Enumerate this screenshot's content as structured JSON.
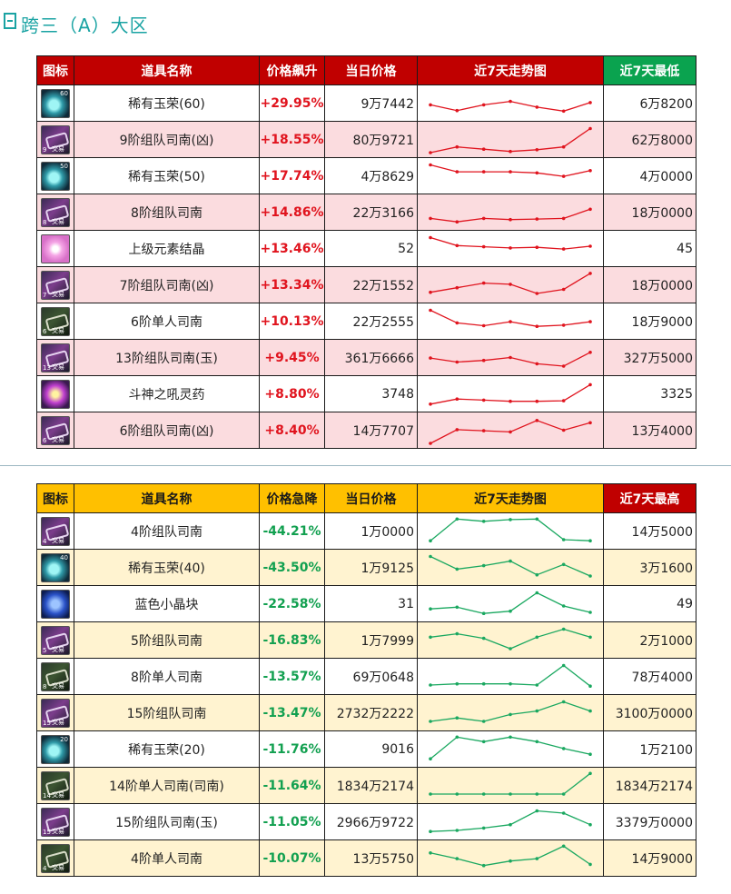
{
  "page": {
    "title": "跨三（A）大区"
  },
  "icons": {
    "header": "bookmark-icon",
    "gem": "gem-icon",
    "ticket": "ticket-icon",
    "crystal": "crystal-icon",
    "potion": "potion-icon",
    "blue_block": "blue-block-icon"
  },
  "colors": {
    "rise_header": "#c00000",
    "rise_ext_header": "#0aa34f",
    "rise_text": "#e0141e",
    "rise_row_alt": "#fbdcdf",
    "drop_header": "#ffc000",
    "drop_ext_header": "#c00000",
    "drop_text": "#12a050",
    "drop_row_alt": "#fff3d0",
    "rise_line": "#e0141e",
    "drop_line": "#1aa860"
  },
  "rise_table": {
    "headers": {
      "icon": "图标",
      "name": "道具名称",
      "pct": "价格飙升",
      "price": "当日价格",
      "trend": "近7天走势图",
      "ext": "近7天最低"
    },
    "rows": [
      {
        "icon": "gem",
        "icon_label": "60",
        "name": "稀有玉荣(60)",
        "pct": "+29.95%",
        "price": "9万7442",
        "ext": "6万8200",
        "trend": [
          2,
          1,
          2,
          2.6,
          1.6,
          0.9,
          2.4
        ]
      },
      {
        "icon": "ticket",
        "icon_label": "9",
        "icon_sub": "交易",
        "name": "9阶组队司南(凶)",
        "pct": "+18.55%",
        "price": "80万9721",
        "ext": "62万8000",
        "trend": [
          0,
          1,
          0.6,
          0.2,
          0.5,
          1,
          4.2
        ]
      },
      {
        "icon": "gem",
        "icon_label": "50",
        "name": "稀有玉荣(50)",
        "pct": "+17.74%",
        "price": "4万8629",
        "ext": "4万0000",
        "trend": [
          4.2,
          3,
          3,
          3,
          2.8,
          2.2,
          3.2
        ]
      },
      {
        "icon": "ticket",
        "icon_label": "8",
        "icon_sub": "交易",
        "name": "8阶组队司南",
        "pct": "+14.86%",
        "price": "22万3166",
        "ext": "18万0000",
        "trend": [
          1.2,
          0.6,
          1.2,
          1,
          1.1,
          1.2,
          2.8
        ]
      },
      {
        "icon": "crystal",
        "name": "上级元素结晶",
        "pct": "+13.46%",
        "price": "52",
        "ext": "45",
        "trend": [
          4.2,
          2.8,
          2.6,
          2.4,
          2.5,
          2.2,
          2.7
        ]
      },
      {
        "icon": "ticket",
        "icon_label": "7",
        "icon_sub": "交易",
        "name": "7阶组队司南(凶)",
        "pct": "+13.34%",
        "price": "22万1552",
        "ext": "18万0000",
        "trend": [
          1,
          1.8,
          2.6,
          2.4,
          0.8,
          1.5,
          4.3
        ]
      },
      {
        "icon": "ticket_dark",
        "icon_label": "6",
        "icon_sub": "交易",
        "name": "6阶单人司南",
        "pct": "+10.13%",
        "price": "22万2555",
        "ext": "18万9000",
        "trend": [
          4.2,
          2,
          1.5,
          2.2,
          1.4,
          1.6,
          2.2
        ]
      },
      {
        "icon": "ticket",
        "icon_label": "13",
        "icon_sub": "交易",
        "name": "13阶组队司南(玉)",
        "pct": "+9.45%",
        "price": "361万6666",
        "ext": "327万5000",
        "trend": [
          2.2,
          1.5,
          1.8,
          2.3,
          1.2,
          0.8,
          3.2
        ]
      },
      {
        "icon": "potion",
        "name": "斗神之吼灵药",
        "pct": "+8.80%",
        "price": "3748",
        "ext": "3325",
        "trend": [
          0.5,
          1.4,
          1.2,
          1,
          1,
          1.1,
          3.9
        ]
      },
      {
        "icon": "ticket",
        "icon_label": "6",
        "icon_sub": "交易",
        "name": "6阶组队司南(凶)",
        "pct": "+8.40%",
        "price": "14万7707",
        "ext": "13万4000",
        "trend": [
          0,
          2.4,
          2.2,
          2,
          4,
          2.3,
          3.6
        ]
      }
    ]
  },
  "drop_table": {
    "headers": {
      "icon": "图标",
      "name": "道具名称",
      "pct": "价格急降",
      "price": "当日价格",
      "trend": "近7天走势图",
      "ext": "近7天最高"
    },
    "rows": [
      {
        "icon": "ticket",
        "icon_label": "4",
        "icon_sub": "交易",
        "name": "4阶组队司南",
        "pct": "-44.21%",
        "price": "1万0000",
        "ext": "14万5000",
        "trend": [
          0.6,
          4.4,
          4,
          4.3,
          4.4,
          0.8,
          0.6
        ]
      },
      {
        "icon": "gem",
        "icon_label": "40",
        "name": "稀有玉荣(40)",
        "pct": "-43.50%",
        "price": "1万9125",
        "ext": "3万1600",
        "trend": [
          4.2,
          2,
          2.6,
          3.4,
          1,
          2.8,
          0.8
        ]
      },
      {
        "icon": "blue_block",
        "name": "蓝色小晶块",
        "pct": "-22.58%",
        "price": "31",
        "ext": "49",
        "trend": [
          1.4,
          1.7,
          0.6,
          1,
          4.2,
          1.9,
          0.8
        ]
      },
      {
        "icon": "ticket",
        "icon_label": "5",
        "icon_sub": "交易",
        "name": "5阶组队司南",
        "pct": "-16.83%",
        "price": "1万7999",
        "ext": "2万1000",
        "trend": [
          2.8,
          3.4,
          2.6,
          0.8,
          2.8,
          4.2,
          2.8
        ]
      },
      {
        "icon": "ticket_dark",
        "icon_label": "8",
        "icon_sub": "交易",
        "name": "8阶单人司南",
        "pct": "-13.57%",
        "price": "69万0648",
        "ext": "78万4000",
        "trend": [
          0.8,
          1,
          1,
          1,
          0.8,
          4.2,
          0.6
        ]
      },
      {
        "icon": "ticket",
        "icon_label": "15",
        "icon_sub": "交易",
        "name": "15阶组队司南",
        "pct": "-13.47%",
        "price": "2732万2222",
        "ext": "3100万0000",
        "trend": [
          0.8,
          1.4,
          0.8,
          2,
          2.6,
          4.2,
          2.6
        ]
      },
      {
        "icon": "gem",
        "icon_label": "20",
        "name": "稀有玉荣(20)",
        "pct": "-11.76%",
        "price": "9016",
        "ext": "1万2100",
        "trend": [
          0.6,
          4.4,
          3.6,
          4.4,
          3.6,
          2.4,
          1.4
        ]
      },
      {
        "icon": "ticket_dark",
        "icon_label": "14",
        "icon_sub": "交易",
        "name": "14阶单人司南(司南)",
        "pct": "-11.64%",
        "price": "1834万2174",
        "ext": "1834万2174",
        "trend": [
          0.8,
          0.8,
          0.8,
          0.8,
          0.8,
          0.8,
          4.4
        ]
      },
      {
        "icon": "ticket",
        "icon_label": "15",
        "icon_sub": "交易",
        "name": "15阶组队司南(玉)",
        "pct": "-11.05%",
        "price": "2966万9722",
        "ext": "3379万0000",
        "trend": [
          0.6,
          0.8,
          1.2,
          1.8,
          4.2,
          3.8,
          1.8
        ]
      },
      {
        "icon": "ticket_dark",
        "icon_label": "4",
        "icon_sub": "交易",
        "name": "4阶单人司南",
        "pct": "-10.07%",
        "price": "13万5750",
        "ext": "14万9000",
        "trend": [
          3.2,
          2.2,
          1,
          1.8,
          2.2,
          4.4,
          1.2
        ]
      }
    ]
  }
}
